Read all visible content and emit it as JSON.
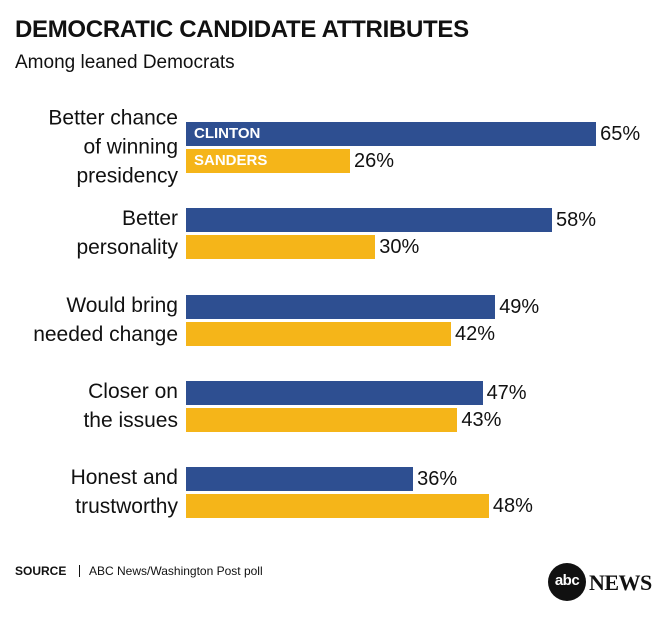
{
  "chart_data": {
    "type": "bar",
    "orientation": "horizontal",
    "title": "DEMOCRATIC CANDIDATE ATTRIBUTES",
    "subtitle": "Among leaned Democrats",
    "categories": [
      "Better chance\nof winning\npresidency",
      "Better\npersonality",
      "Would bring\nneeded change",
      "Closer on\nthe issues",
      "Honest and\ntrustworthy"
    ],
    "series": [
      {
        "name": "CLINTON",
        "color": "#2e4f91",
        "values": [
          65,
          58,
          49,
          47,
          36
        ],
        "value_labels": [
          "65%",
          "58%",
          "49%",
          "47%",
          "36%"
        ]
      },
      {
        "name": "SANDERS",
        "color": "#f5b519",
        "values": [
          26,
          30,
          42,
          43,
          48
        ],
        "value_labels": [
          "26%",
          "30%",
          "42%",
          "43%",
          "48%"
        ]
      }
    ],
    "source_label": "SOURCE",
    "source": "ABC News/Washington Post poll",
    "logo": {
      "mark": "abc",
      "text": "NEWS"
    }
  }
}
